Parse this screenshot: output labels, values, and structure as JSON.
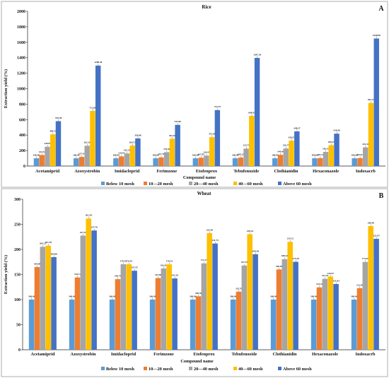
{
  "colors": [
    "#5b9bd5",
    "#ed7d31",
    "#a5a5a5",
    "#ffc000",
    "#4472c4"
  ],
  "chart_data": [
    {
      "type": "bar",
      "title": "Rice",
      "panel_letter": "A",
      "xlabel": "Compound name",
      "ylabel": "Extraction yield (%)",
      "ylim": [
        0,
        2000
      ],
      "yticks": [
        "0",
        "200",
        "400",
        "600",
        "800",
        "1000",
        "1200",
        "1400",
        "1600",
        "1800",
        "2000"
      ],
      "ytick_values": [
        0,
        200,
        400,
        600,
        800,
        1000,
        1200,
        1400,
        1600,
        1800,
        2000
      ],
      "legend": "bottom",
      "categories": [
        "Acetamiprid",
        "Azoxystrobin",
        "Imidacloprid",
        "Ferimzone",
        "Etofenprox",
        "Tebufenozide",
        "Clothianidin",
        "Hexaconazole",
        "Indoxacrb"
      ],
      "series": [
        {
          "name": "Below 10 mesh",
          "values": [
            100.0,
            100.0,
            100.0,
            100.0,
            100.0,
            100.0,
            100.0,
            100.0,
            100.0
          ],
          "labels": [
            "100.00",
            "100.00",
            "100.00",
            "100.00",
            "100.00",
            "100.00",
            "100.00",
            "100.00",
            "100.00"
          ]
        },
        {
          "name": "10—20 mesh",
          "values": [
            142.54,
            117.93,
            124.63,
            111.76,
            107.85,
            109.25,
            144.84,
            103.12,
            103.04
          ],
          "labels": [
            "142.54",
            "117.93",
            "124.63",
            "111.76",
            "107.85",
            "109.25",
            "144.84",
            "103.12",
            "103.04"
          ]
        },
        {
          "name": "20—40 mesh",
          "values": [
            249.09,
            262.16,
            162.51,
            179.06,
            134.95,
            225.75,
            226.75,
            182.47,
            241.5
          ],
          "labels": [
            "249.09",
            "262.16",
            "162.51",
            "179.06",
            "134.95",
            "225.75",
            "226.75",
            "182.47",
            "241.50"
          ]
        },
        {
          "name": "40—60 mesh",
          "values": [
            409.15,
            712.66,
            264.73,
            352.36,
            373.08,
            648.42,
            328.57,
            269.43,
            815.34
          ],
          "labels": [
            "409.15",
            "712.66",
            "264.73",
            "352.36",
            "373.08",
            "648.42",
            "328.57",
            "269.43",
            "815.34"
          ]
        },
        {
          "name": "Above 60 mesh",
          "values": [
            579.9,
            1298.44,
            356.86,
            532.06,
            722.97,
            1397.54,
            448.27,
            418.56,
            1648.06
          ],
          "labels": [
            "579.90",
            "1298.44",
            "356.86",
            "532.06",
            "722.97",
            "1397.54",
            "448.27",
            "418.56",
            "1648.06"
          ]
        }
      ]
    },
    {
      "type": "bar",
      "title": "Wheat",
      "panel_letter": "B",
      "xlabel": "Compound name",
      "ylabel": "Extraction yield (%)",
      "ylim": [
        0,
        300
      ],
      "yticks": [
        "0",
        "50",
        "100",
        "150",
        "200",
        "250",
        "300"
      ],
      "ytick_values": [
        0,
        50,
        100,
        150,
        200,
        250,
        300
      ],
      "legend": "bottom",
      "categories": [
        "Acetamiprid",
        "Azoxystrobin",
        "Imidacloprid",
        "Ferimzone",
        "Etofenprox",
        "Tebufenozide",
        "Clothianidin",
        "Hexaconazole",
        "Indoxacrb"
      ],
      "series": [
        {
          "name": "Below 10 mesh",
          "values": [
            100.0,
            100.0,
            100.0,
            100.0,
            100.0,
            100.0,
            100.0,
            100.0,
            100.0
          ],
          "labels": [
            "100.00",
            "100.00",
            "100.00",
            "100.00",
            "100.00",
            "100.00",
            "100.00",
            "100.00",
            "100.00"
          ]
        },
        {
          "name": "10—20 mesh",
          "values": [
            164.88,
            144.12,
            140.7,
            142.86,
            106.58,
            115.76,
            160.08,
            124.32,
            122.69
          ],
          "labels": [
            "164.88",
            "144.12",
            "140.70",
            "142.86",
            "106.58",
            "115.76",
            "160.08",
            "124.32",
            "122.69"
          ]
        },
        {
          "name": "20—40 mesh",
          "values": [
            205.21,
            227.49,
            170.42,
            162.05,
            172.15,
            167.91,
            180.61,
            141.33,
            175.05
          ],
          "labels": [
            "205.21",
            "227.49",
            "170.42",
            "162.05",
            "172.15",
            "167.91",
            "180.61",
            "141.33",
            "175.05"
          ]
        },
        {
          "name": "40—60 mesh",
          "values": [
            207.39,
            261.59,
            170.54,
            170.25,
            232.49,
            230.24,
            215.12,
            145.97,
            246.49
          ],
          "labels": [
            "207.39",
            "261.59",
            "170.54",
            "170.25",
            "232.49",
            "230.24",
            "215.12",
            "145.97",
            "246.49"
          ]
        },
        {
          "name": "Above 60 mesh",
          "values": [
            184.66,
            237.76,
            157.47,
            142.16,
            211.75,
            190.38,
            175.29,
            131.03,
            221.07
          ],
          "labels": [
            "184.66",
            "237.76",
            "157.47",
            "142.16",
            "211.75",
            "190.38",
            "175.29",
            "131.03",
            "221.07"
          ]
        }
      ]
    }
  ]
}
